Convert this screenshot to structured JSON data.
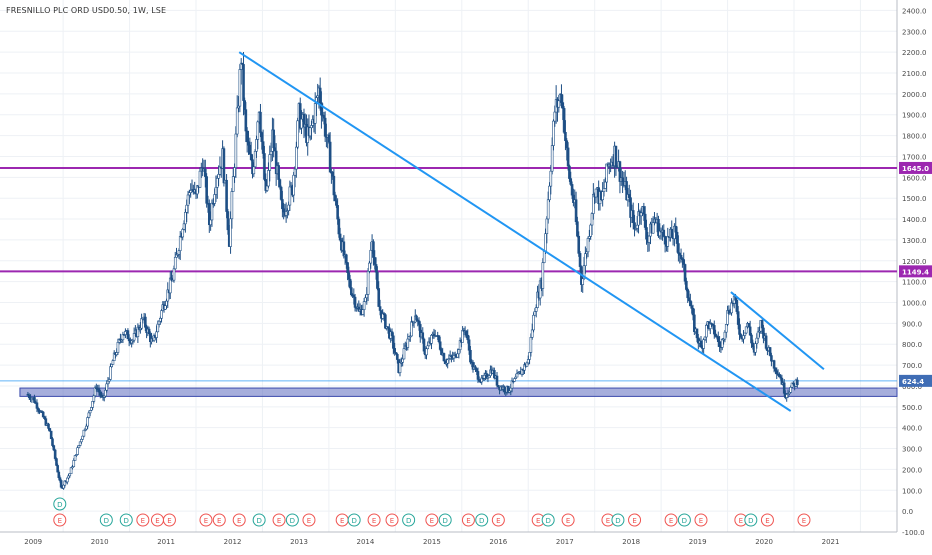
{
  "header": {
    "symbol_title": "FRESNILLO PLC ORD USD0.50, 1W, LSE"
  },
  "chart_data": {
    "type": "candlestick",
    "title": "FRESNILLO PLC ORD USD0.50, 1W, LSE",
    "interval": "1W",
    "exchange": "LSE",
    "xlabel": "",
    "ylabel": "",
    "xlim": [
      2008.05,
      2021.55
    ],
    "ylim": [
      -100,
      2450
    ],
    "x_ticks": [
      "2009",
      "2010",
      "2011",
      "2012",
      "2013",
      "2014",
      "2015",
      "2016",
      "2017",
      "2018",
      "2019",
      "2020",
      "2021"
    ],
    "y_ticks": [
      "-100.0",
      "0.0",
      "100.0",
      "200.0",
      "300.0",
      "400.0",
      "500.0",
      "600.0",
      "700.0",
      "800.0",
      "900.0",
      "1000.0",
      "1100.0",
      "1200.0",
      "1300.0",
      "1400.0",
      "1500.0",
      "1600.0",
      "1700.0",
      "1800.0",
      "1900.0",
      "2000.0",
      "2100.0",
      "2200.0",
      "2300.0",
      "2400.0"
    ],
    "price_path": [
      [
        2008.45,
        560
      ],
      [
        2008.55,
        540
      ],
      [
        2008.7,
        450
      ],
      [
        2008.8,
        380
      ],
      [
        2008.9,
        220
      ],
      [
        2008.97,
        110
      ],
      [
        2009.1,
        180
      ],
      [
        2009.2,
        280
      ],
      [
        2009.35,
        420
      ],
      [
        2009.5,
        600
      ],
      [
        2009.6,
        530
      ],
      [
        2009.75,
        720
      ],
      [
        2009.9,
        860
      ],
      [
        2010.05,
        820
      ],
      [
        2010.2,
        920
      ],
      [
        2010.35,
        800
      ],
      [
        2010.5,
        980
      ],
      [
        2010.65,
        1120
      ],
      [
        2010.8,
        1380
      ],
      [
        2010.92,
        1560
      ],
      [
        2011.0,
        1500
      ],
      [
        2011.1,
        1680
      ],
      [
        2011.2,
        1380
      ],
      [
        2011.3,
        1600
      ],
      [
        2011.4,
        1700
      ],
      [
        2011.5,
        1300
      ],
      [
        2011.6,
        1780
      ],
      [
        2011.68,
        2180
      ],
      [
        2011.75,
        1800
      ],
      [
        2011.85,
        1620
      ],
      [
        2011.95,
        1950
      ],
      [
        2012.05,
        1500
      ],
      [
        2012.15,
        1800
      ],
      [
        2012.3,
        1420
      ],
      [
        2012.45,
        1550
      ],
      [
        2012.55,
        1900
      ],
      [
        2012.7,
        1780
      ],
      [
        2012.85,
        2020
      ],
      [
        2013.0,
        1720
      ],
      [
        2013.15,
        1350
      ],
      [
        2013.3,
        1100
      ],
      [
        2013.45,
        950
      ],
      [
        2013.55,
        1000
      ],
      [
        2013.65,
        1320
      ],
      [
        2013.75,
        980
      ],
      [
        2013.85,
        900
      ],
      [
        2013.95,
        820
      ],
      [
        2014.05,
        680
      ],
      [
        2014.15,
        780
      ],
      [
        2014.3,
        950
      ],
      [
        2014.45,
        760
      ],
      [
        2014.6,
        860
      ],
      [
        2014.75,
        720
      ],
      [
        2014.9,
        740
      ],
      [
        2015.05,
        880
      ],
      [
        2015.15,
        700
      ],
      [
        2015.3,
        620
      ],
      [
        2015.45,
        680
      ],
      [
        2015.55,
        600
      ],
      [
        2015.7,
        580
      ],
      [
        2015.85,
        650
      ],
      [
        2016.0,
        720
      ],
      [
        2016.1,
        980
      ],
      [
        2016.2,
        1100
      ],
      [
        2016.3,
        1500
      ],
      [
        2016.4,
        1920
      ],
      [
        2016.5,
        2000
      ],
      [
        2016.6,
        1640
      ],
      [
        2016.7,
        1450
      ],
      [
        2016.8,
        1100
      ],
      [
        2016.9,
        1300
      ],
      [
        2017.0,
        1550
      ],
      [
        2017.1,
        1480
      ],
      [
        2017.2,
        1650
      ],
      [
        2017.3,
        1720
      ],
      [
        2017.4,
        1600
      ],
      [
        2017.5,
        1500
      ],
      [
        2017.6,
        1350
      ],
      [
        2017.7,
        1470
      ],
      [
        2017.8,
        1300
      ],
      [
        2017.9,
        1400
      ],
      [
        2018.0,
        1330
      ],
      [
        2018.1,
        1300
      ],
      [
        2018.2,
        1330
      ],
      [
        2018.3,
        1220
      ],
      [
        2018.4,
        1050
      ],
      [
        2018.5,
        880
      ],
      [
        2018.6,
        780
      ],
      [
        2018.7,
        900
      ],
      [
        2018.8,
        860
      ],
      [
        2018.9,
        780
      ],
      [
        2019.0,
        950
      ],
      [
        2019.1,
        1020
      ],
      [
        2019.2,
        830
      ],
      [
        2019.3,
        900
      ],
      [
        2019.4,
        760
      ],
      [
        2019.5,
        900
      ],
      [
        2019.6,
        780
      ],
      [
        2019.7,
        700
      ],
      [
        2019.8,
        640
      ],
      [
        2019.87,
        560
      ],
      [
        2019.95,
        590
      ],
      [
        2020.05,
        624
      ]
    ],
    "current_price": {
      "value": 624.4,
      "label": "624.4",
      "color": "#2196f3"
    },
    "horizontal_levels": [
      {
        "value": 1645.0,
        "label": "1645.0",
        "color": "#9c27b0"
      },
      {
        "value": 1149.4,
        "label": "1149.4",
        "color": "#9c27b0"
      }
    ],
    "support_zone": {
      "from": 550,
      "to": 590,
      "x_start": 2008.35,
      "x_end": 2021.55,
      "fill": "#5c6bc0",
      "border": "#3949ab"
    },
    "trend_lines": [
      {
        "x1": 2011.65,
        "y1": 2200,
        "x2": 2019.95,
        "y2": 480,
        "color": "#2196f3"
      },
      {
        "x1": 2019.05,
        "y1": 1050,
        "x2": 2020.45,
        "y2": 680,
        "color": "#2196f3"
      }
    ],
    "event_markers": [
      {
        "x": 2008.95,
        "label": "D",
        "row": 0,
        "color": "#26a69a"
      },
      {
        "x": 2008.95,
        "label": "E",
        "row": 1,
        "color": "#ef5350"
      },
      {
        "x": 2009.65,
        "label": "D",
        "row": 1,
        "color": "#26a69a"
      },
      {
        "x": 2009.95,
        "label": "D",
        "row": 1,
        "color": "#26a69a"
      },
      {
        "x": 2010.2,
        "label": "E",
        "row": 1,
        "color": "#ef5350"
      },
      {
        "x": 2010.42,
        "label": "E",
        "row": 1,
        "color": "#ef5350"
      },
      {
        "x": 2010.6,
        "label": "E",
        "row": 1,
        "color": "#ef5350"
      },
      {
        "x": 2011.15,
        "label": "E",
        "row": 1,
        "color": "#ef5350"
      },
      {
        "x": 2011.35,
        "label": "E",
        "row": 1,
        "color": "#ef5350"
      },
      {
        "x": 2011.65,
        "label": "E",
        "row": 1,
        "color": "#ef5350"
      },
      {
        "x": 2011.95,
        "label": "D",
        "row": 1,
        "color": "#26a69a"
      },
      {
        "x": 2012.25,
        "label": "E",
        "row": 1,
        "color": "#ef5350"
      },
      {
        "x": 2012.45,
        "label": "D",
        "row": 1,
        "color": "#26a69a"
      },
      {
        "x": 2012.7,
        "label": "E",
        "row": 1,
        "color": "#ef5350"
      },
      {
        "x": 2013.2,
        "label": "E",
        "row": 1,
        "color": "#ef5350"
      },
      {
        "x": 2013.38,
        "label": "D",
        "row": 1,
        "color": "#26a69a"
      },
      {
        "x": 2013.68,
        "label": "E",
        "row": 1,
        "color": "#ef5350"
      },
      {
        "x": 2013.95,
        "label": "E",
        "row": 1,
        "color": "#ef5350"
      },
      {
        "x": 2014.2,
        "label": "D",
        "row": 1,
        "color": "#26a69a"
      },
      {
        "x": 2014.55,
        "label": "E",
        "row": 1,
        "color": "#ef5350"
      },
      {
        "x": 2014.75,
        "label": "D",
        "row": 1,
        "color": "#26a69a"
      },
      {
        "x": 2015.1,
        "label": "E",
        "row": 1,
        "color": "#ef5350"
      },
      {
        "x": 2015.3,
        "label": "D",
        "row": 1,
        "color": "#26a69a"
      },
      {
        "x": 2015.55,
        "label": "E",
        "row": 1,
        "color": "#ef5350"
      },
      {
        "x": 2016.15,
        "label": "E",
        "row": 1,
        "color": "#ef5350"
      },
      {
        "x": 2016.3,
        "label": "D",
        "row": 1,
        "color": "#26a69a"
      },
      {
        "x": 2016.6,
        "label": "E",
        "row": 1,
        "color": "#ef5350"
      },
      {
        "x": 2017.2,
        "label": "E",
        "row": 1,
        "color": "#ef5350"
      },
      {
        "x": 2017.35,
        "label": "D",
        "row": 1,
        "color": "#26a69a"
      },
      {
        "x": 2017.6,
        "label": "E",
        "row": 1,
        "color": "#ef5350"
      },
      {
        "x": 2018.15,
        "label": "E",
        "row": 1,
        "color": "#ef5350"
      },
      {
        "x": 2018.35,
        "label": "D",
        "row": 1,
        "color": "#26a69a"
      },
      {
        "x": 2018.6,
        "label": "E",
        "row": 1,
        "color": "#ef5350"
      },
      {
        "x": 2019.2,
        "label": "E",
        "row": 1,
        "color": "#ef5350"
      },
      {
        "x": 2019.35,
        "label": "D",
        "row": 1,
        "color": "#26a69a"
      },
      {
        "x": 2019.6,
        "label": "E",
        "row": 1,
        "color": "#ef5350"
      },
      {
        "x": 2020.15,
        "label": "E",
        "row": 1,
        "color": "#ef5350"
      }
    ],
    "colors": {
      "candles": "#1e4f85",
      "grid": "#eef1f5",
      "axis_text": "#4a4a4a"
    }
  }
}
